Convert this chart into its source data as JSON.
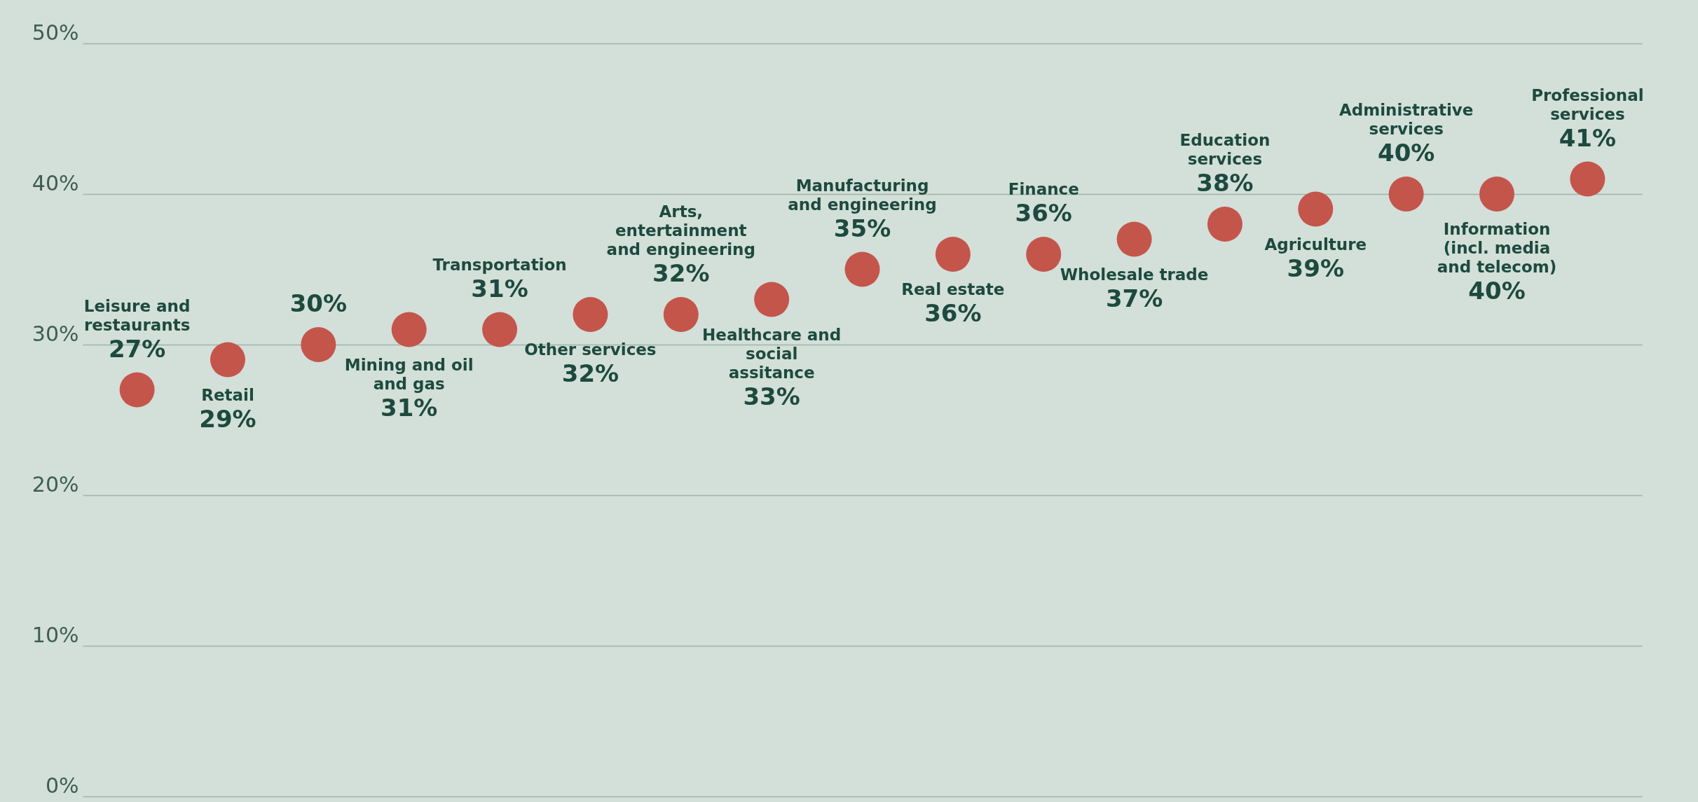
{
  "chart_data": {
    "type": "scatter",
    "categories": [
      "Leisure and restaurants",
      "Retail",
      null,
      "Mining and oil and gas",
      "Transportation",
      "Other services",
      "Arts, entertainment and engineering",
      "Healthcare and social assitance",
      "Manufacturing and engineering",
      "Real estate",
      "Finance",
      "Wholesale trade",
      "Education services",
      "Agriculture",
      "Administrative services",
      "Information (incl. media and telecom)",
      "Professional services"
    ],
    "values": [
      27,
      29,
      30,
      31,
      31,
      32,
      32,
      33,
      35,
      36,
      36,
      37,
      38,
      39,
      40,
      40,
      41
    ],
    "value_labels": [
      "27%",
      "29%",
      "30%",
      "31%",
      "31%",
      "32%",
      "32%",
      "33%",
      "35%",
      "36%",
      "36%",
      "37%",
      "38%",
      "39%",
      "40%",
      "40%",
      "41%"
    ],
    "color": "#c4554b",
    "marker": "circle",
    "ylim": [
      0,
      50
    ],
    "yticks": [
      {
        "value": 0,
        "label": "0%"
      },
      {
        "value": 10,
        "label": "10%"
      },
      {
        "value": 20,
        "label": "20%"
      },
      {
        "value": 30,
        "label": "30%"
      },
      {
        "value": 40,
        "label": "40%"
      },
      {
        "value": 50,
        "label": "50%"
      }
    ],
    "grid": "y",
    "tick_labels": "y"
  }
}
